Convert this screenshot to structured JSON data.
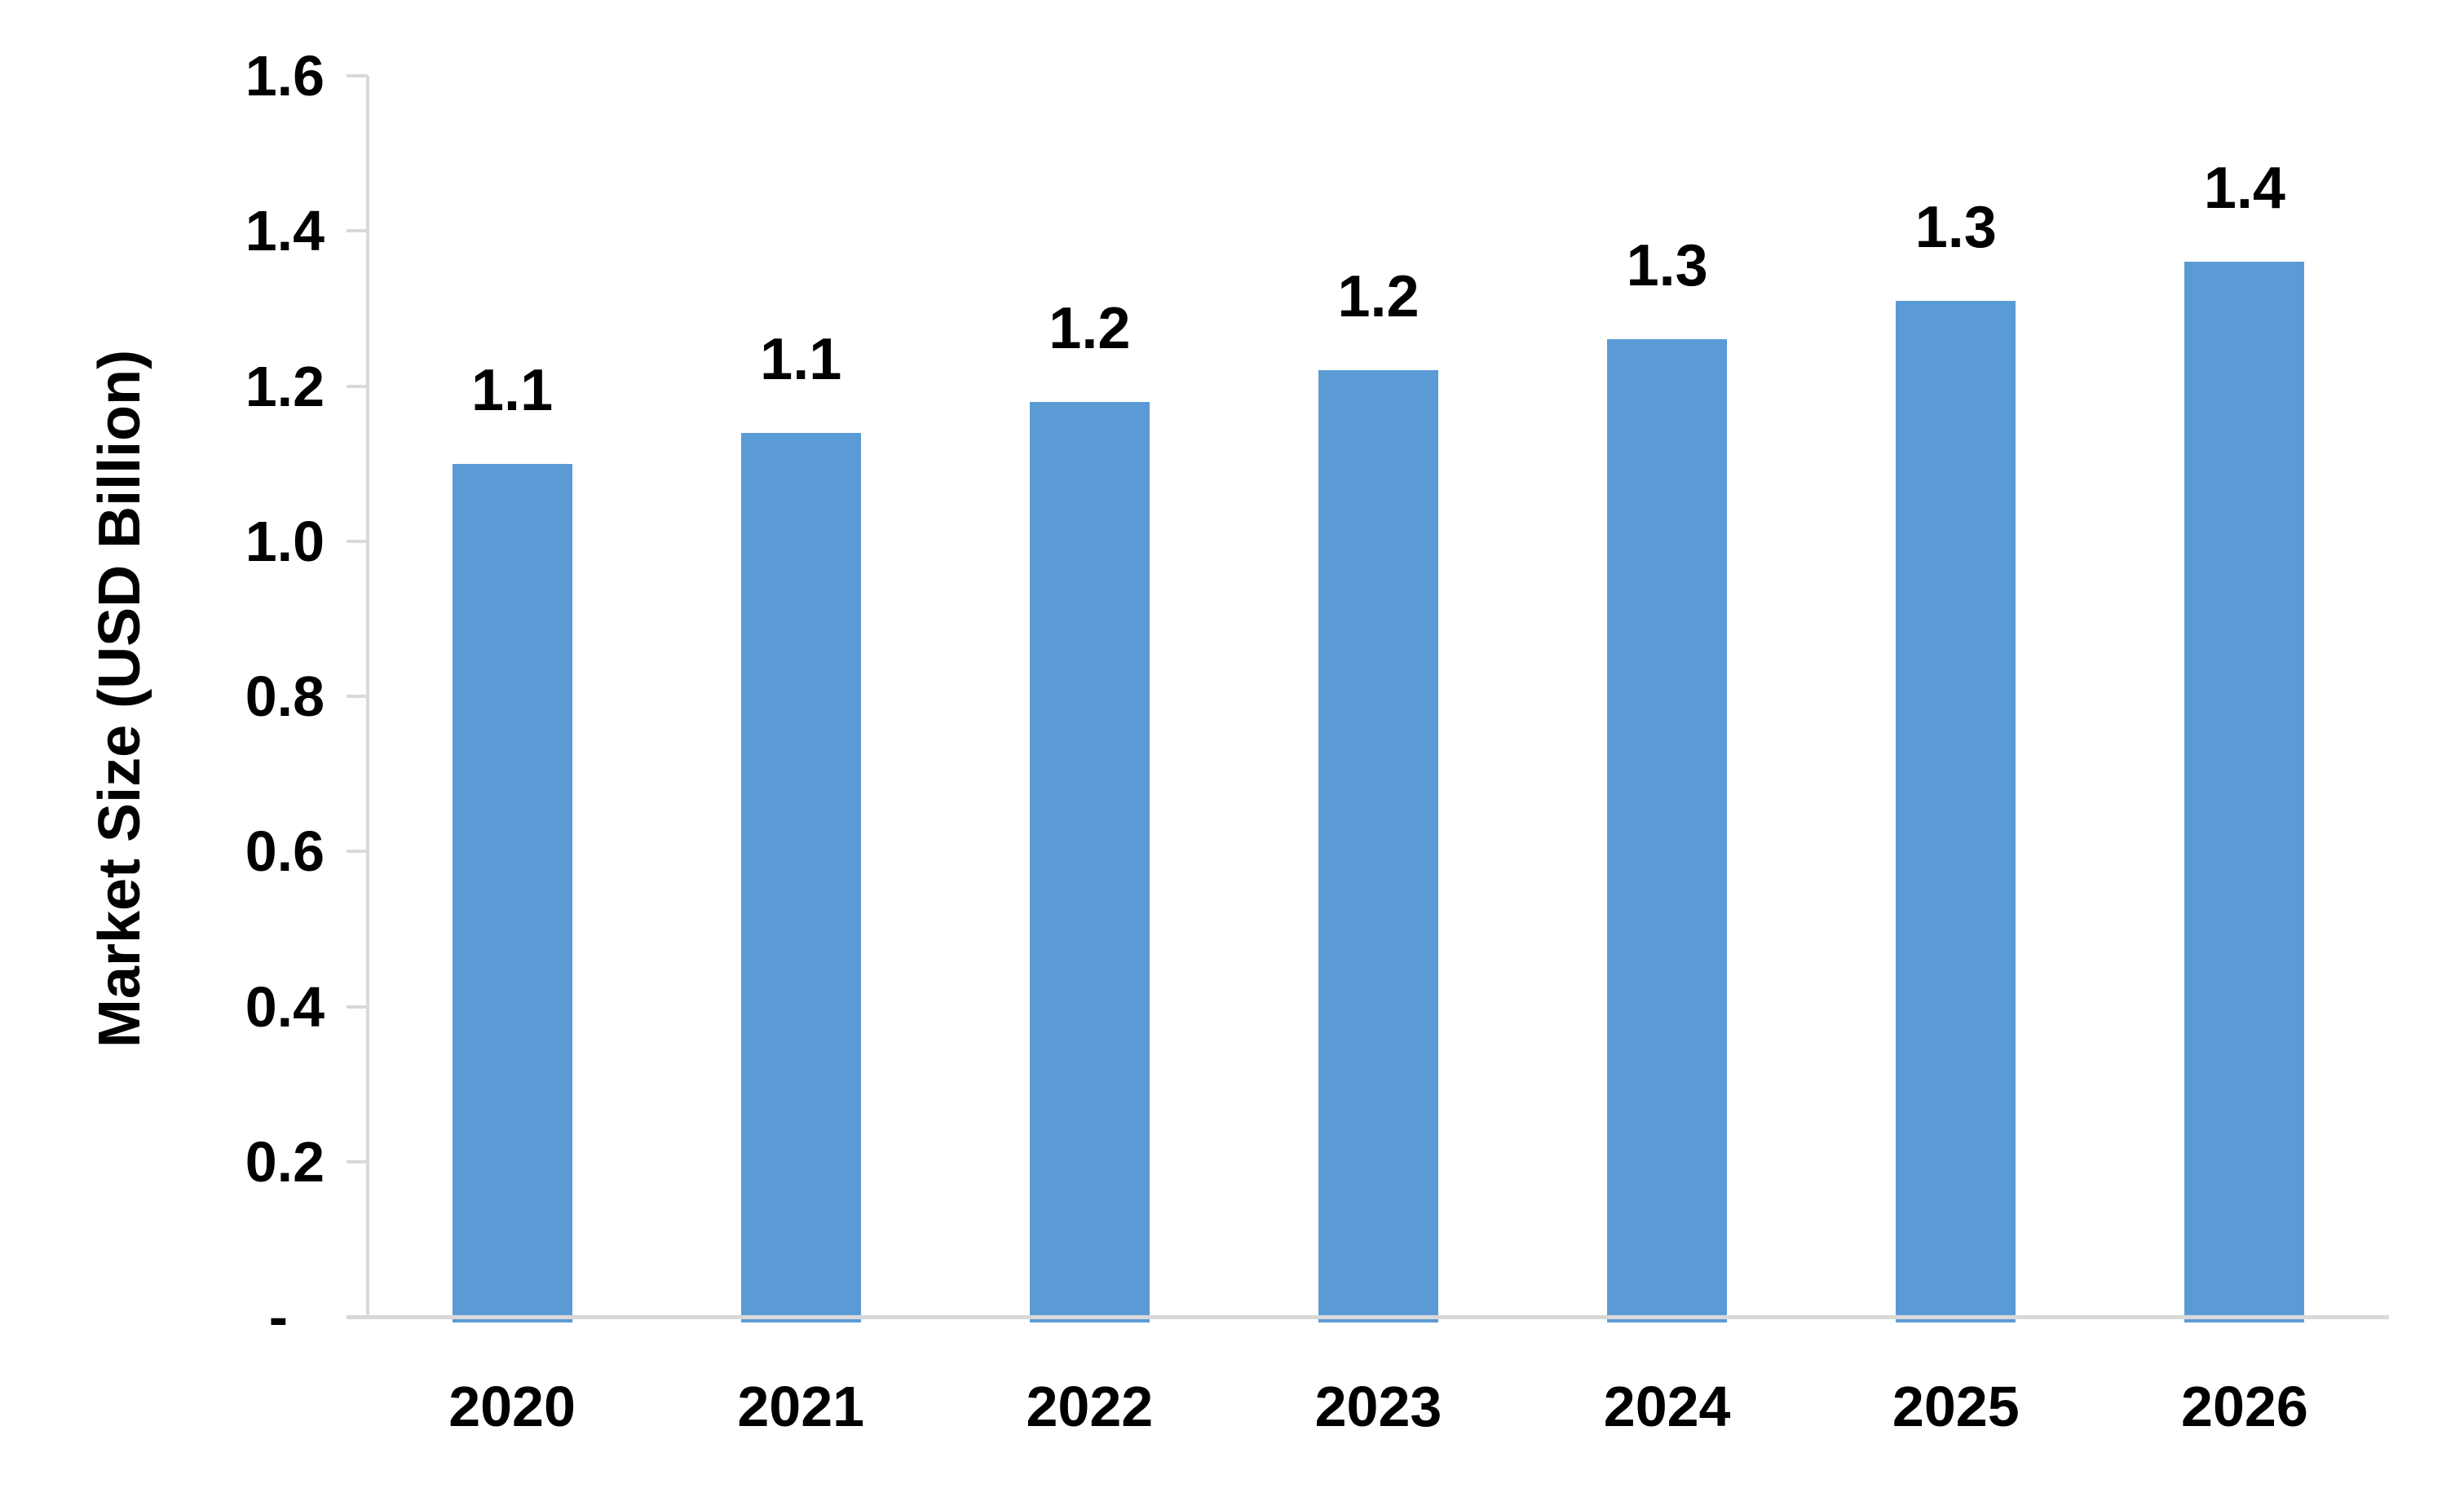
{
  "chart_data": {
    "type": "bar",
    "title": "",
    "ylabel": "Market Size (USD Billion)",
    "xlabel": "",
    "categories": [
      "2020",
      "2021",
      "2022",
      "2023",
      "2024",
      "2025",
      "2026"
    ],
    "values": [
      1.1,
      1.14,
      1.18,
      1.22,
      1.26,
      1.31,
      1.36
    ],
    "data_labels": [
      "1.1",
      "1.1",
      "1.2",
      "1.2",
      "1.3",
      "1.3",
      "1.4"
    ],
    "ylim": [
      0,
      1.6
    ],
    "y_ticks": [
      {
        "value": 1.6,
        "label": "1.6"
      },
      {
        "value": 1.4,
        "label": "1.4"
      },
      {
        "value": 1.2,
        "label": "1.2"
      },
      {
        "value": 1.0,
        "label": "1.0"
      },
      {
        "value": 0.8,
        "label": "0.8"
      },
      {
        "value": 0.6,
        "label": "0.6"
      },
      {
        "value": 0.4,
        "label": "0.4"
      },
      {
        "value": 0.2,
        "label": "0.2"
      },
      {
        "value": 0.0,
        "label": "-"
      }
    ],
    "grid": "off",
    "legend": "none",
    "bar_color": "#5B9BD5",
    "axis_color": "#D9D9D9",
    "text_color": "#000000"
  }
}
